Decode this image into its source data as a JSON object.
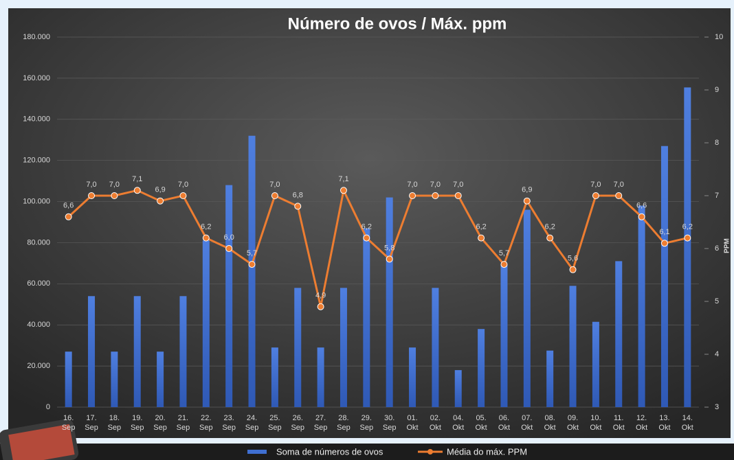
{
  "chart_data": {
    "type": "bar",
    "title": "Número de ovos / Máx. ppm",
    "y2_label": "PPM",
    "categories": [
      "16. Sep",
      "17. Sep",
      "18. Sep",
      "19. Sep",
      "20. Sep",
      "21. Sep",
      "22. Sep",
      "23. Sep",
      "24. Sep",
      "25. Sep",
      "26. Sep",
      "27. Sep",
      "28. Sep",
      "29. Sep",
      "30. Sep",
      "01. Okt",
      "02. Okt",
      "04. Okt",
      "05. Okt",
      "06. Okt",
      "07. Okt",
      "08. Okt",
      "09. Okt",
      "10. Okt",
      "11. Okt",
      "12. Okt",
      "13. Okt",
      "14. Okt"
    ],
    "series": [
      {
        "name": "Soma de números de ovos",
        "type": "bar",
        "color": "#3f6fd1",
        "values": [
          27000,
          54000,
          27000,
          54000,
          27000,
          54000,
          81000,
          108000,
          132000,
          29000,
          58000,
          29000,
          58000,
          87000,
          102000,
          29000,
          58000,
          18000,
          38000,
          69000,
          96000,
          27500,
          59000,
          41500,
          71000,
          98000,
          127000,
          155500
        ]
      },
      {
        "name": "Média do máx. PPM",
        "type": "line",
        "axis": "y2",
        "color": "#ed7d31",
        "values": [
          6.6,
          7.0,
          7.0,
          7.1,
          6.9,
          7.0,
          6.2,
          6.0,
          5.7,
          7.0,
          6.8,
          4.9,
          7.1,
          6.2,
          5.8,
          7.0,
          7.0,
          7.0,
          6.2,
          5.7,
          6.9,
          6.2,
          5.6,
          7.0,
          7.0,
          6.6,
          6.1,
          6.2
        ],
        "value_labels": [
          "6,6",
          "7,0",
          "7,0",
          "7,1",
          "6,9",
          "7,0",
          "6,2",
          "6,0",
          "5,7",
          "7,0",
          "6,8",
          "4,9",
          "7,1",
          "6,2",
          "5,8",
          "7,0",
          "7,0",
          "7,0",
          "6,2",
          "5,7",
          "6,9",
          "6,2",
          "5,6",
          "7,0",
          "7,0",
          "6,6",
          "6,1",
          "6,2"
        ]
      }
    ],
    "ylim": [
      0,
      180000
    ],
    "yticks": [
      {
        "value": 0,
        "label": "0"
      },
      {
        "value": 20000,
        "label": "20.000"
      },
      {
        "value": 40000,
        "label": "40.000"
      },
      {
        "value": 60000,
        "label": "60.000"
      },
      {
        "value": 80000,
        "label": "80.000"
      },
      {
        "value": 100000,
        "label": "100.000"
      },
      {
        "value": 120000,
        "label": "120.000"
      },
      {
        "value": 140000,
        "label": "140.000"
      },
      {
        "value": 160000,
        "label": "160.000"
      },
      {
        "value": 180000,
        "label": "180.000"
      }
    ],
    "y2lim": [
      3,
      10
    ],
    "y2ticks": [
      3,
      4,
      5,
      6,
      7,
      8,
      9,
      10
    ],
    "grid": true
  }
}
